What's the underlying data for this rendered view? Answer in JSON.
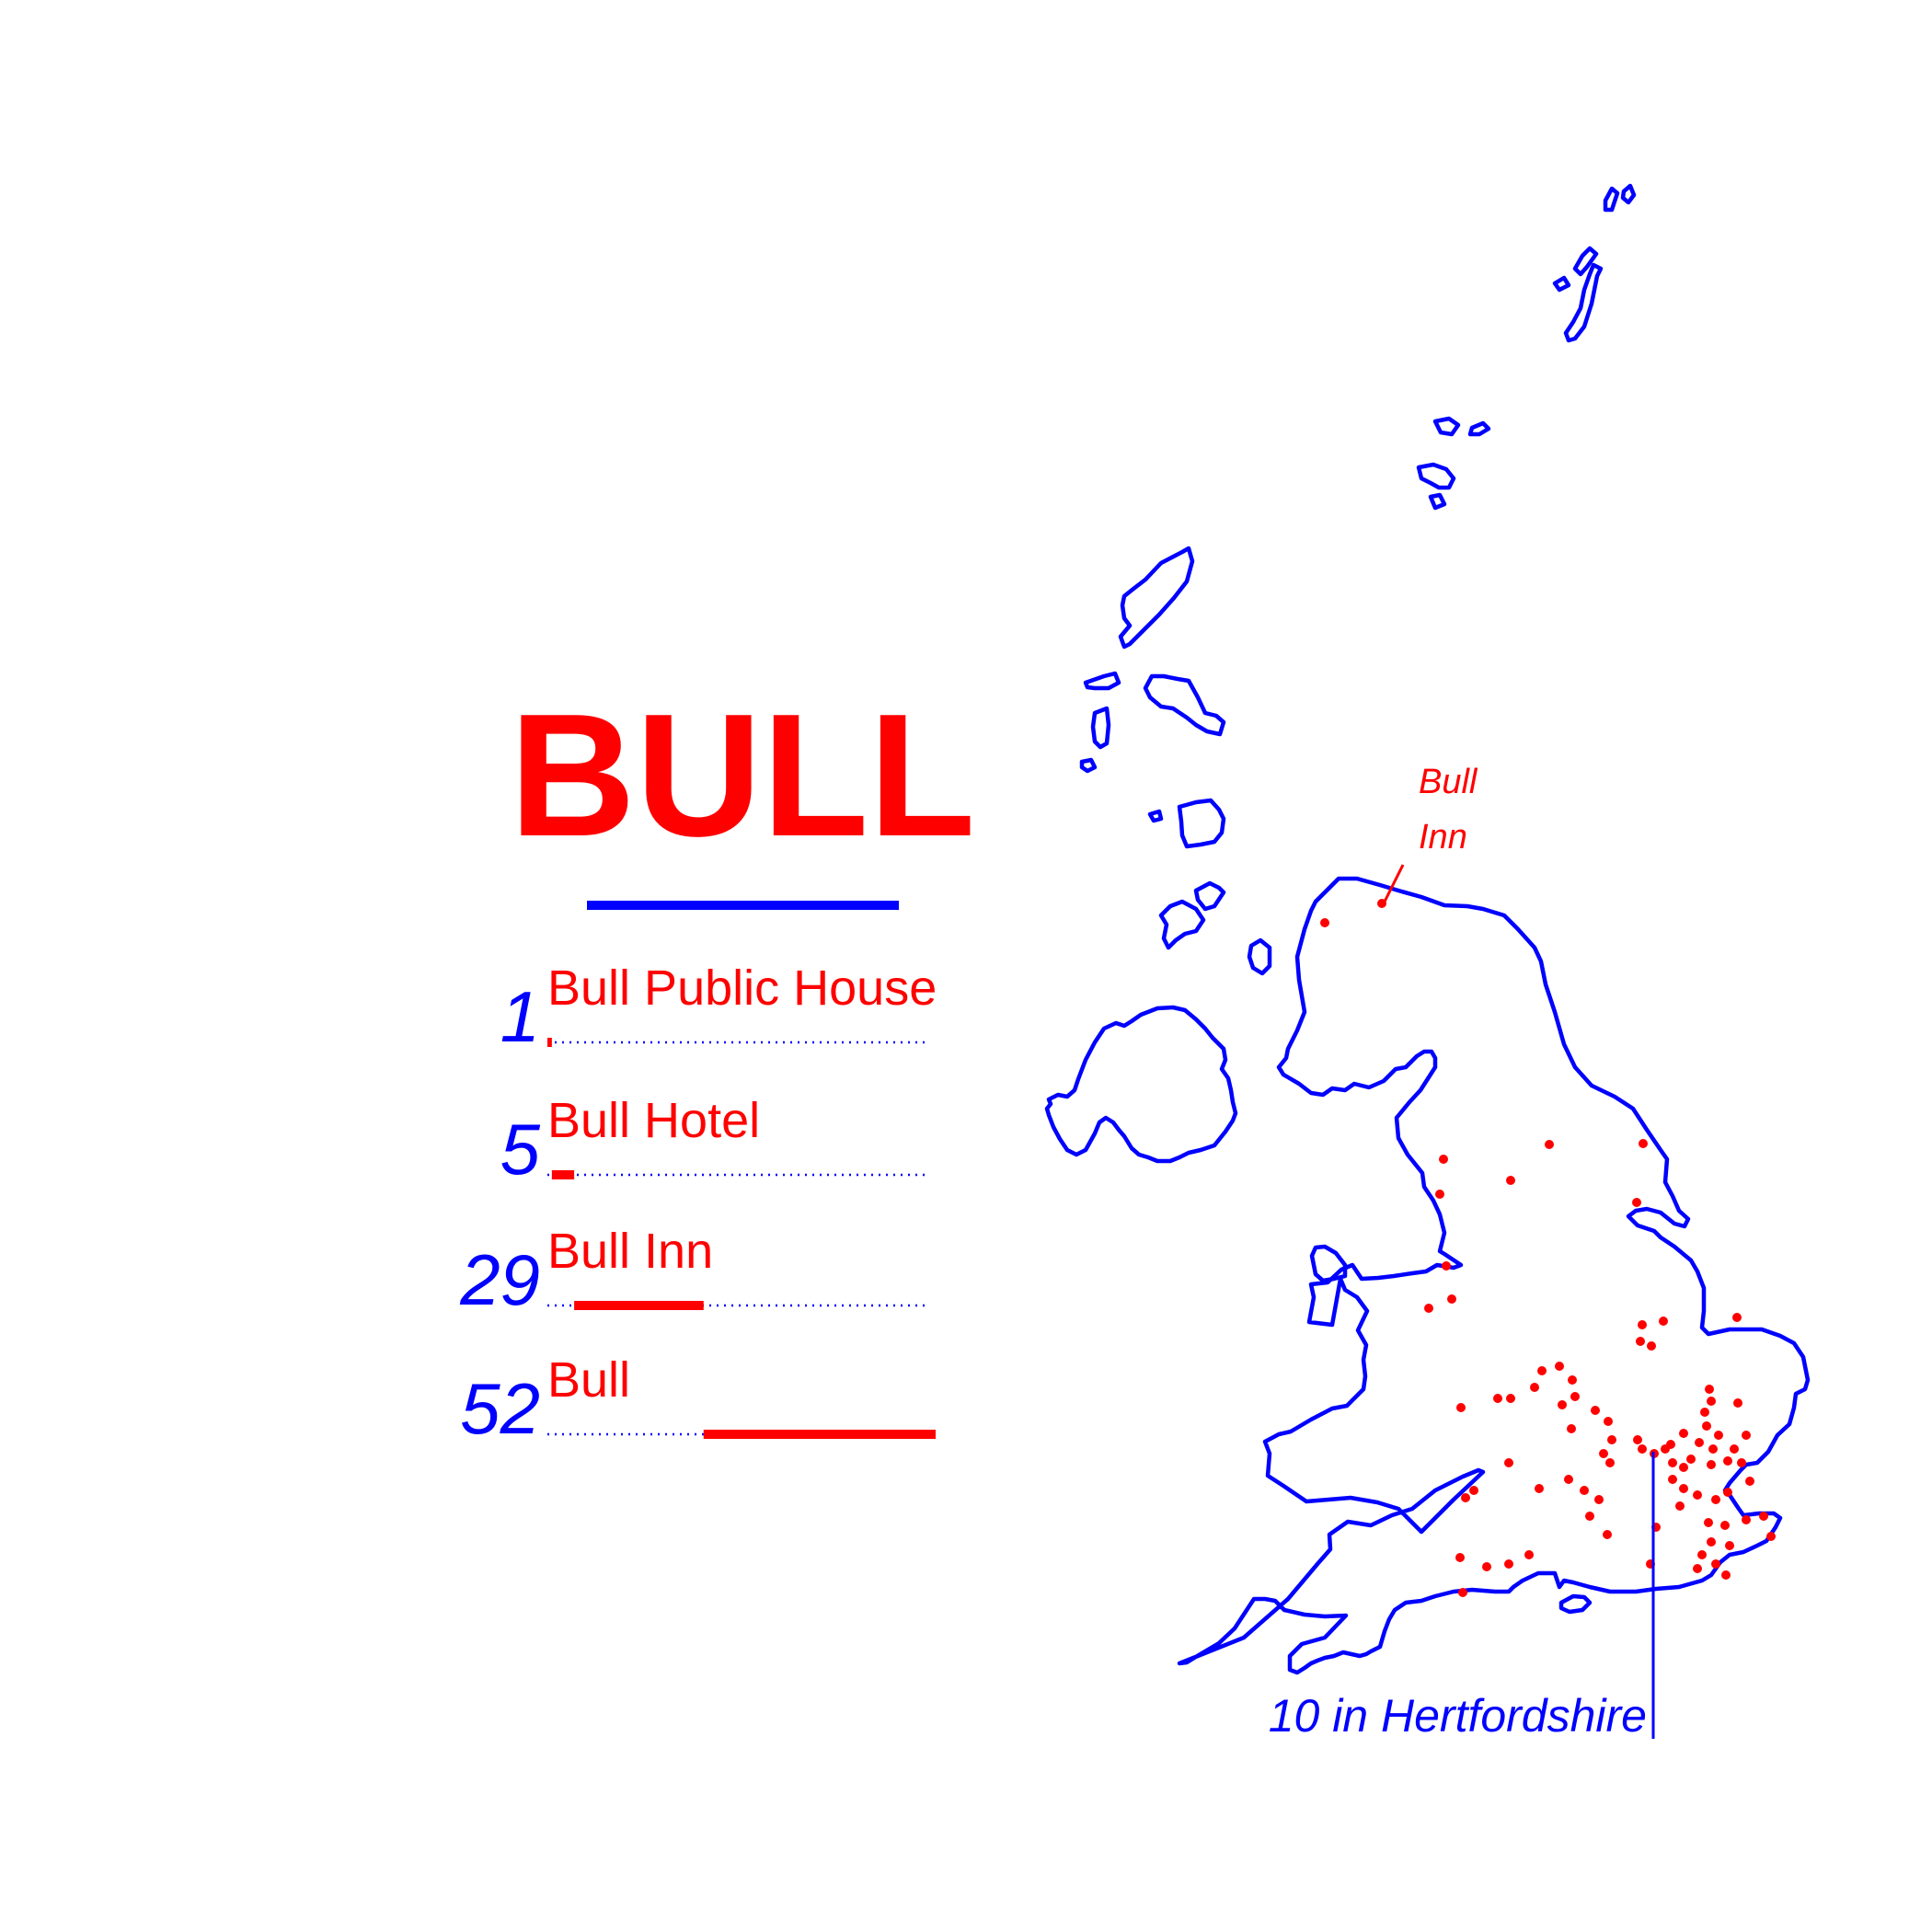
{
  "title": "BULL",
  "colors": {
    "primary": "#ff0000",
    "secondary": "#0000ff",
    "background": "#ffffff"
  },
  "legend": {
    "rows": [
      {
        "count": "1",
        "name": "Bull Public House",
        "value": 1
      },
      {
        "count": "5",
        "name": "Bull Hotel",
        "value": 5
      },
      {
        "count": "29",
        "name": "Bull Inn",
        "value": 29
      },
      {
        "count": "52",
        "name": "Bull",
        "value": 52
      }
    ]
  },
  "map": {
    "scotland_label_line1": "Bull",
    "scotland_label_line2": "Inn",
    "hertfordshire_label": "10 in Hertfordshire"
  }
}
